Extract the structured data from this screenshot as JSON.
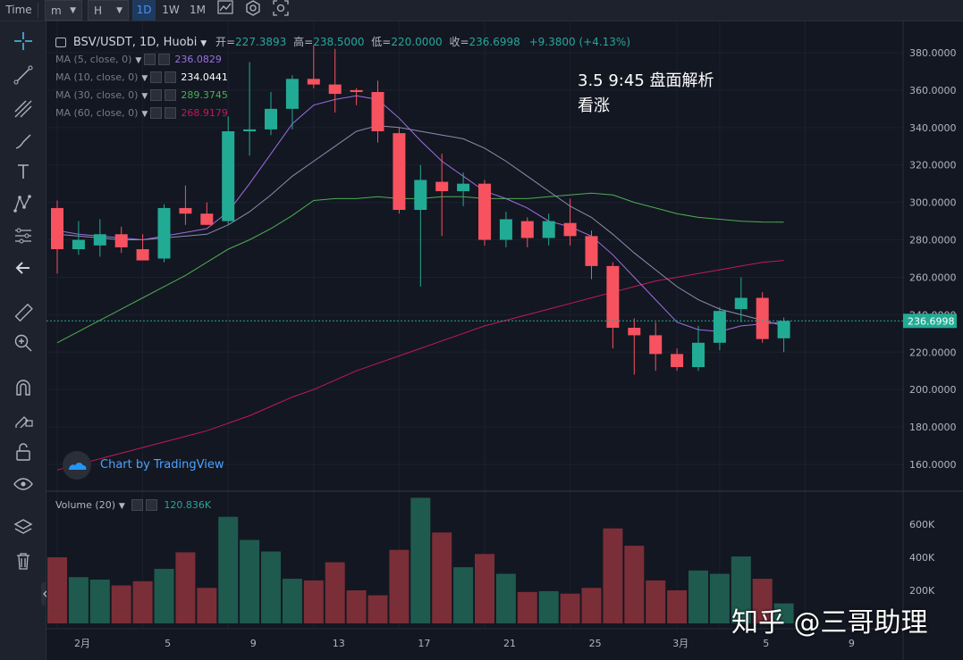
{
  "toolbar": {
    "time_label": "Time",
    "interval_minutes": "m",
    "interval_hours": "H",
    "interval_1d": "1D",
    "interval_1w": "1W",
    "interval_1m": "1M"
  },
  "legend": {
    "symbol": "BSV/USDT, 1D, Huobi",
    "open_label": "开=",
    "open_value": "227.3893",
    "high_label": "高=",
    "high_value": "238.5000",
    "low_label": "低=",
    "low_value": "220.0000",
    "close_label": "收=",
    "close_value": "236.6998",
    "change": "+9.3800 (+4.13%)",
    "ma": [
      {
        "label": "MA (5, close, 0)",
        "value": "236.0829",
        "color": "#9c6fe0"
      },
      {
        "label": "MA (10, close, 0)",
        "value": "234.0441",
        "color": "#ffffff"
      },
      {
        "label": "MA (30, close, 0)",
        "value": "289.3745",
        "color": "#4caf50"
      },
      {
        "label": "MA (60, close, 0)",
        "value": "268.9179",
        "color": "#c2185b"
      }
    ],
    "volume_label": "Volume (20)",
    "volume_value": "120.836K"
  },
  "annotation": {
    "line1": "3.5 9:45 盘面解析",
    "line2": "看涨"
  },
  "branding": {
    "tradingview": "Chart by TradingView",
    "watermark": "知乎 @三哥助理"
  },
  "colors": {
    "up": "#26a69a",
    "down": "#ef5350",
    "up_body": "#22ab94",
    "down_body": "#f7525f",
    "last_price_bg": "#22ab94"
  },
  "last_price": "236.6998",
  "price_axis": [
    "380.0000",
    "360.0000",
    "340.0000",
    "320.0000",
    "300.0000",
    "280.0000",
    "260.0000",
    "240.0000",
    "220.0000",
    "200.0000",
    "180.0000",
    "160.0000"
  ],
  "volume_axis": [
    "600K",
    "400K",
    "200K"
  ],
  "time_axis": [
    "2月",
    "5",
    "9",
    "13",
    "17",
    "21",
    "25",
    "3月",
    "5",
    "9"
  ],
  "chart_data": {
    "type": "candlestick",
    "ylim": [
      150,
      390
    ],
    "ohlc": [
      [
        297,
        301,
        262,
        275
      ],
      [
        275,
        290,
        272,
        280
      ],
      [
        277,
        291,
        271,
        283
      ],
      [
        283,
        287,
        273,
        276
      ],
      [
        275,
        283,
        270,
        269
      ],
      [
        270,
        299,
        268,
        297
      ],
      [
        297,
        309,
        288,
        294
      ],
      [
        294,
        300,
        288,
        288
      ],
      [
        290,
        346,
        288,
        338
      ],
      [
        338,
        375,
        325,
        339
      ],
      [
        339,
        359,
        336,
        350
      ],
      [
        350,
        368,
        339,
        366
      ],
      [
        366,
        384,
        361,
        363
      ],
      [
        363,
        382,
        348,
        358
      ],
      [
        360,
        361,
        352,
        359
      ],
      [
        359,
        365,
        332,
        338
      ],
      [
        337,
        340,
        294,
        296
      ],
      [
        296,
        320,
        255,
        312
      ],
      [
        311,
        326,
        282,
        306
      ],
      [
        306,
        316,
        298,
        310
      ],
      [
        310,
        312,
        277,
        280
      ],
      [
        280,
        295,
        276,
        291
      ],
      [
        290,
        292,
        276,
        281
      ],
      [
        281,
        294,
        277,
        290
      ],
      [
        289,
        302,
        277,
        282
      ],
      [
        282,
        285,
        259,
        266
      ],
      [
        266,
        268,
        222,
        233
      ],
      [
        233,
        238,
        208,
        229
      ],
      [
        229,
        236,
        210,
        219
      ],
      [
        219,
        222,
        210,
        212
      ],
      [
        212,
        234,
        210,
        225
      ],
      [
        225,
        244,
        221,
        242
      ],
      [
        243,
        260,
        236,
        249
      ],
      [
        249,
        252,
        225,
        227
      ],
      [
        227.3893,
        238.5,
        220,
        236.6998
      ]
    ],
    "volume": [
      400,
      280,
      265,
      230,
      255,
      330,
      430,
      215,
      645,
      505,
      435,
      270,
      260,
      370,
      200,
      170,
      445,
      760,
      550,
      340,
      420,
      300,
      190,
      195,
      180,
      215,
      575,
      470,
      260,
      200,
      320,
      300,
      405,
      270,
      121
    ],
    "ma5": [
      285,
      283,
      282,
      281,
      280,
      282,
      284,
      286,
      295,
      310,
      326,
      342,
      352,
      355,
      357,
      355,
      345,
      333,
      322,
      314,
      306,
      302,
      297,
      290,
      287,
      282,
      272,
      260,
      248,
      236,
      232,
      231,
      234,
      235,
      236
    ],
    "ma10": [
      283,
      282,
      281,
      280,
      280,
      281,
      282,
      283,
      288,
      295,
      304,
      314,
      322,
      330,
      338,
      341,
      340,
      338,
      336,
      334,
      329,
      322,
      314,
      306,
      298,
      292,
      283,
      273,
      264,
      255,
      248,
      243,
      240,
      237,
      234
    ],
    "ma30": [
      225,
      231,
      237,
      243,
      249,
      255,
      261,
      268,
      275,
      280,
      286,
      293,
      301,
      302,
      302,
      303,
      302,
      302,
      303,
      303,
      302,
      302,
      302,
      303,
      304,
      305,
      304,
      300,
      297,
      294,
      292,
      291,
      290,
      289.5,
      289.4
    ],
    "ma60": [
      157,
      160,
      163,
      166,
      169,
      172,
      175,
      178,
      182,
      186,
      191,
      196,
      200,
      205,
      210,
      214,
      218,
      222,
      226,
      230,
      234,
      237,
      240,
      243,
      246,
      249,
      252,
      255,
      258,
      260,
      262,
      264,
      266,
      268,
      269
    ]
  }
}
